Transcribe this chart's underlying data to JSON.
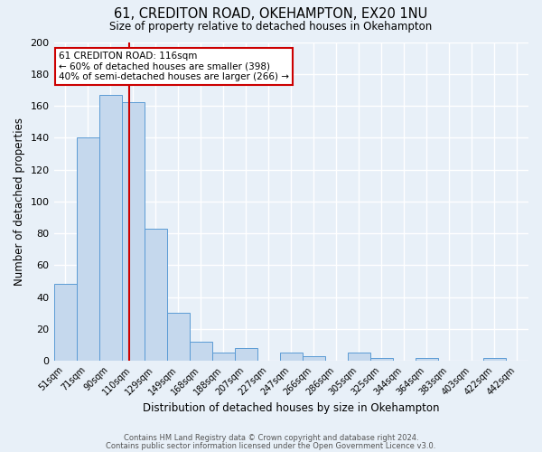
{
  "title": "61, CREDITON ROAD, OKEHAMPTON, EX20 1NU",
  "subtitle": "Size of property relative to detached houses in Okehampton",
  "xlabel": "Distribution of detached houses by size in Okehampton",
  "ylabel": "Number of detached properties",
  "bar_labels": [
    "51sqm",
    "71sqm",
    "90sqm",
    "110sqm",
    "129sqm",
    "149sqm",
    "168sqm",
    "188sqm",
    "207sqm",
    "227sqm",
    "247sqm",
    "266sqm",
    "286sqm",
    "305sqm",
    "325sqm",
    "344sqm",
    "364sqm",
    "383sqm",
    "403sqm",
    "422sqm",
    "442sqm"
  ],
  "bar_values": [
    48,
    140,
    167,
    162,
    83,
    30,
    12,
    5,
    8,
    0,
    5,
    3,
    0,
    5,
    2,
    0,
    2,
    0,
    0,
    2,
    0
  ],
  "bar_color": "#c5d8ed",
  "bar_edge_color": "#5b9bd5",
  "ylim": [
    0,
    200
  ],
  "yticks": [
    0,
    20,
    40,
    60,
    80,
    100,
    120,
    140,
    160,
    180,
    200
  ],
  "property_line_color": "#cc0000",
  "annotation_title": "61 CREDITON ROAD: 116sqm",
  "annotation_line1": "← 60% of detached houses are smaller (398)",
  "annotation_line2": "40% of semi-detached houses are larger (266) →",
  "footer1": "Contains HM Land Registry data © Crown copyright and database right 2024.",
  "footer2": "Contains public sector information licensed under the Open Government Licence v3.0.",
  "bg_color": "#e8f0f8",
  "plot_bg_color": "#e8f0f8",
  "bin_edges": [
    51,
    71,
    90,
    110,
    129,
    149,
    168,
    188,
    207,
    227,
    247,
    266,
    286,
    305,
    325,
    344,
    364,
    383,
    403,
    422,
    442
  ],
  "property_value": 116
}
